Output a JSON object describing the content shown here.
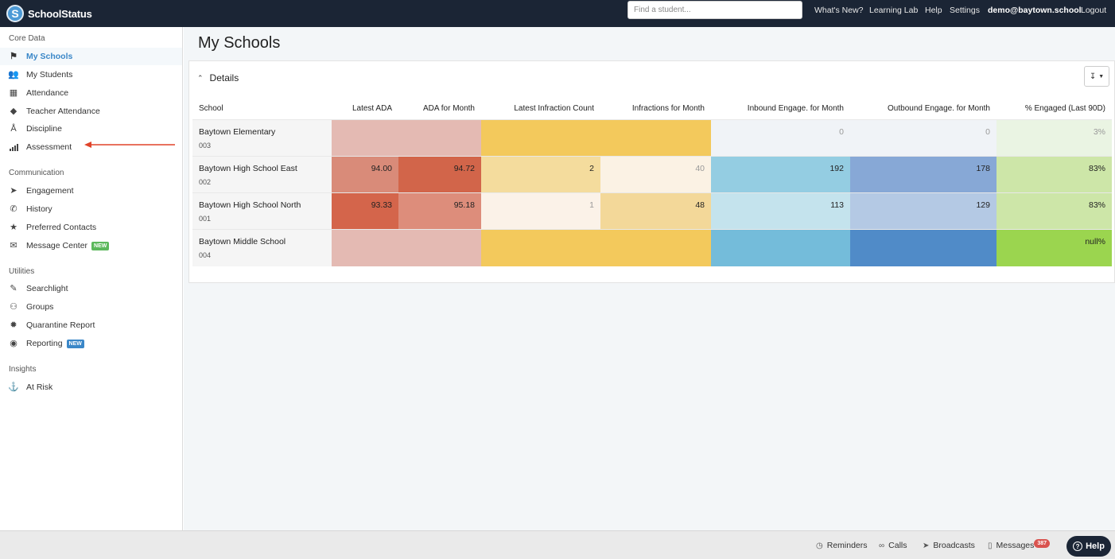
{
  "app": {
    "name": "SchoolStatus",
    "logo_letter": "S"
  },
  "topbar": {
    "search_placeholder": "Find a student...",
    "links": [
      "What's New?",
      "Learning Lab",
      "Help",
      "Settings"
    ],
    "user": "demo@baytown.school",
    "logout": "Logout"
  },
  "sidebar": {
    "sections": [
      {
        "title": "Core Data",
        "items": [
          {
            "label": "My Schools",
            "icon": "school-icon",
            "active": true
          },
          {
            "label": "My Students",
            "icon": "students-icon"
          },
          {
            "label": "Attendance",
            "icon": "calendar-icon"
          },
          {
            "label": "Teacher Attendance",
            "icon": "tag-icon"
          },
          {
            "label": "Discipline",
            "icon": "gavel-icon"
          },
          {
            "label": "Assessment",
            "icon": "bar-chart-icon"
          }
        ]
      },
      {
        "title": "Communication",
        "items": [
          {
            "label": "Engagement",
            "icon": "megaphone-icon"
          },
          {
            "label": "History",
            "icon": "phone-icon"
          },
          {
            "label": "Preferred Contacts",
            "icon": "star-icon"
          },
          {
            "label": "Message Center",
            "icon": "message-icon",
            "badge": "NEW",
            "badge_color": "#5cb85c"
          }
        ]
      },
      {
        "title": "Utilities",
        "items": [
          {
            "label": "Searchlight",
            "icon": "flashlight-icon"
          },
          {
            "label": "Groups",
            "icon": "groups-icon"
          },
          {
            "label": "Quarantine Report",
            "icon": "virus-icon"
          },
          {
            "label": "Reporting",
            "icon": "report-icon",
            "badge": "NEW",
            "badge_color": "#3a87c8"
          }
        ]
      },
      {
        "title": "Insights",
        "items": [
          {
            "label": "At Risk",
            "icon": "at-risk-icon"
          }
        ]
      }
    ]
  },
  "main": {
    "title": "My Schools",
    "panel_title": "Details",
    "export_icon": "download-icon",
    "columns": [
      "School",
      "Latest ADA",
      "ADA for Month",
      "Latest Infraction Count",
      "Infractions for Month",
      "Inbound Engage. for Month",
      "Outbound Engage. for Month",
      "% Engaged (Last 90D)"
    ],
    "rows": [
      {
        "name": "Baytown Elementary",
        "code": "003",
        "cells": [
          {
            "value": "",
            "bg": "#e4bab3"
          },
          {
            "value": "",
            "bg": "#e4bab3"
          },
          {
            "value": "",
            "bg": "#f3c95c"
          },
          {
            "value": "",
            "bg": "#f3c95c"
          },
          {
            "value": "0",
            "bg": "#f0f3f7",
            "dim": true
          },
          {
            "value": "0",
            "bg": "#f0f3f7",
            "dim": true
          },
          {
            "value": "3%",
            "bg": "#eaf4e3",
            "dim": true
          }
        ]
      },
      {
        "name": "Baytown High School East",
        "code": "002",
        "cells": [
          {
            "value": "94.00",
            "bg": "#d98b79"
          },
          {
            "value": "94.72",
            "bg": "#d2654a"
          },
          {
            "value": "2",
            "bg": "#f4dc9d"
          },
          {
            "value": "40",
            "bg": "#fbf2e4",
            "dim": true
          },
          {
            "value": "192",
            "bg": "#94cde2"
          },
          {
            "value": "178",
            "bg": "#87a8d6"
          },
          {
            "value": "83%",
            "bg": "#cde6a8"
          }
        ]
      },
      {
        "name": "Baytown High School North",
        "code": "001",
        "cells": [
          {
            "value": "93.33",
            "bg": "#d4654b"
          },
          {
            "value": "95.18",
            "bg": "#dd8d7b"
          },
          {
            "value": "1",
            "bg": "#fbf2e8",
            "dim": true
          },
          {
            "value": "48",
            "bg": "#f3d899"
          },
          {
            "value": "113",
            "bg": "#c4e3ed"
          },
          {
            "value": "129",
            "bg": "#b4c9e4"
          },
          {
            "value": "83%",
            "bg": "#cde6a8"
          }
        ]
      },
      {
        "name": "Baytown Middle School",
        "code": "004",
        "cells": [
          {
            "value": "",
            "bg": "#e4bab3"
          },
          {
            "value": "",
            "bg": "#e4bab3"
          },
          {
            "value": "",
            "bg": "#f3c95c"
          },
          {
            "value": "",
            "bg": "#f3c95c"
          },
          {
            "value": "",
            "bg": "#74bcda"
          },
          {
            "value": "",
            "bg": "#508bc8"
          },
          {
            "value": "null%",
            "bg": "#9bd54f"
          }
        ]
      }
    ]
  },
  "bottombar": {
    "items": [
      {
        "label": "Reminders",
        "icon": "clock-icon"
      },
      {
        "label": "Calls",
        "icon": "voicemail-icon"
      },
      {
        "label": "Broadcasts",
        "icon": "megaphone-icon"
      },
      {
        "label": "Messages",
        "icon": "messages-icon",
        "badge": "387"
      }
    ],
    "help": "Help"
  }
}
